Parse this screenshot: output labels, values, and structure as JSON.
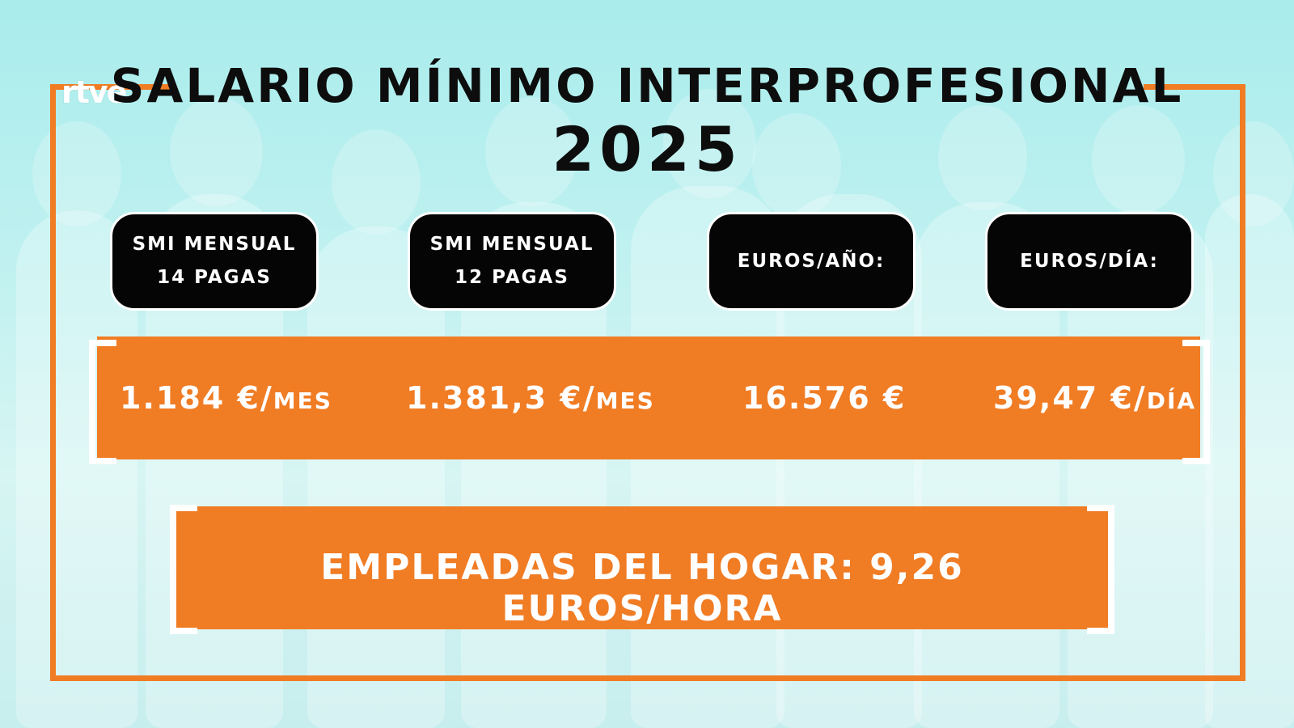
{
  "logo_text": "rtve",
  "title": "SALARIO MÍNIMO INTERPROFESIONAL",
  "year": "2025",
  "colors": {
    "accent": "#f07c24",
    "pill": "#050505",
    "background": "#bff1f0"
  },
  "headers": [
    {
      "line1": "SMI MENSUAL",
      "line2": "14 PAGAS"
    },
    {
      "line1": "SMI MENSUAL",
      "line2": "12 PAGAS"
    },
    {
      "line1": "EUROS/AÑO:",
      "line2": ""
    },
    {
      "line1": "EUROS/DÍA:",
      "line2": ""
    }
  ],
  "values": [
    {
      "amount": "1.184 €/",
      "unit": "MES"
    },
    {
      "amount": "1.381,3 €/",
      "unit": "MES"
    },
    {
      "amount": "16.576 €",
      "unit": ""
    },
    {
      "amount": "39,47 €/",
      "unit": "DÍA"
    }
  ],
  "domestic_workers": "EMPLEADAS DEL HOGAR: 9,26 EUROS/HORA"
}
